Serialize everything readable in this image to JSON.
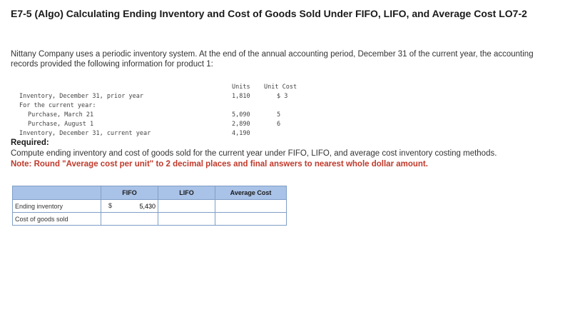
{
  "header": {
    "title": "E7-5 (Algo) Calculating Ending Inventory and Cost of Goods Sold Under FIFO, LIFO, and Average Cost LO7-2"
  },
  "intro": "Nittany Company uses a periodic inventory system. At the end of the annual accounting period, December 31 of the current year, the accounting records provided the following information for product 1:",
  "inventory_table": {
    "headers": {
      "units": "Units",
      "unit_cost": "Unit Cost"
    },
    "rows": [
      {
        "label": "Inventory, December 31, prior year",
        "units": "1,810",
        "cost": "$ 3"
      },
      {
        "label": "For the current year:",
        "units": "",
        "cost": ""
      },
      {
        "label": "Purchase, March 21",
        "units": "5,090",
        "cost": "5"
      },
      {
        "label": "Purchase, August 1",
        "units": "2,890",
        "cost": "6"
      },
      {
        "label": "Inventory, December 31, current year",
        "units": "4,190",
        "cost": ""
      }
    ]
  },
  "required": {
    "heading": "Required:",
    "text": "Compute ending inventory and cost of goods sold for the current year under FIFO, LIFO, and average cost inventory costing methods.",
    "note": "Note: Round \"Average cost per unit\" to 2 decimal places and final answers to nearest whole dollar amount."
  },
  "answer_table": {
    "columns": [
      "FIFO",
      "LIFO",
      "Average Cost"
    ],
    "rows": [
      {
        "label": "Ending inventory",
        "fifo_prefix": "$",
        "fifo": "5,430",
        "lifo": "",
        "avg": ""
      },
      {
        "label": "Cost of goods sold",
        "fifo_prefix": "",
        "fifo": "",
        "lifo": "",
        "avg": ""
      }
    ]
  }
}
